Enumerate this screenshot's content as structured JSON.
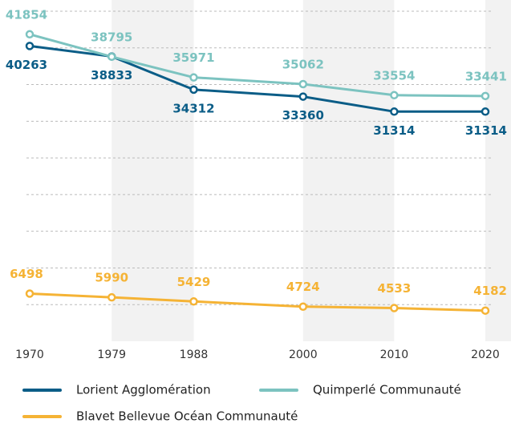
{
  "chart_data": {
    "type": "line",
    "x": [
      1970,
      1979,
      1988,
      2000,
      2010,
      2020
    ],
    "xlim": [
      1970,
      2020
    ],
    "xticks": [
      1970,
      1979,
      1988,
      2000,
      2010,
      2020
    ],
    "ylim": [
      0,
      45000
    ],
    "yticks": [
      0,
      5000,
      10000,
      15000,
      20000,
      25000,
      30000,
      35000,
      40000,
      45000
    ],
    "grid": true,
    "legend": "bottom",
    "series": [
      {
        "name": "Lorient Agglomération",
        "color": "#0b5d87",
        "values": [
          40263,
          38833,
          34312,
          33360,
          31314,
          31314
        ]
      },
      {
        "name": "Quimperlé Communauté",
        "color": "#7cc3c0",
        "values": [
          41854,
          38795,
          35971,
          35062,
          33554,
          33441
        ]
      },
      {
        "name": "Blavet Bellevue Océan Communauté",
        "color": "#f5b335",
        "values": [
          6498,
          5990,
          5429,
          4724,
          4533,
          4182
        ]
      }
    ]
  }
}
